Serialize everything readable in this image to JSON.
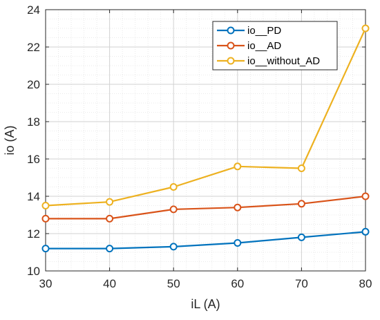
{
  "chart_data": {
    "type": "line",
    "xlabel": "iL (A)",
    "ylabel": "io (A)",
    "x": [
      30,
      40,
      50,
      60,
      70,
      80
    ],
    "xlim": [
      30,
      80
    ],
    "ylim": [
      10,
      24
    ],
    "xticks": [
      "30",
      "40",
      "50",
      "60",
      "70",
      "80"
    ],
    "yticks": [
      "10",
      "12",
      "14",
      "16",
      "18",
      "20",
      "22",
      "24"
    ],
    "grid": "on (major and minor, dotted)",
    "legend_position": "top-right",
    "series": [
      {
        "name": "io__PD",
        "color": "#0072BD",
        "values": [
          11.2,
          11.2,
          11.3,
          11.5,
          11.8,
          12.1
        ]
      },
      {
        "name": "io__AD",
        "color": "#D95319",
        "values": [
          12.8,
          12.8,
          13.3,
          13.4,
          13.6,
          14.0
        ]
      },
      {
        "name": "io__without_AD",
        "color": "#EDB120",
        "values": [
          13.5,
          13.7,
          14.5,
          15.6,
          15.5,
          23.0
        ]
      }
    ]
  }
}
